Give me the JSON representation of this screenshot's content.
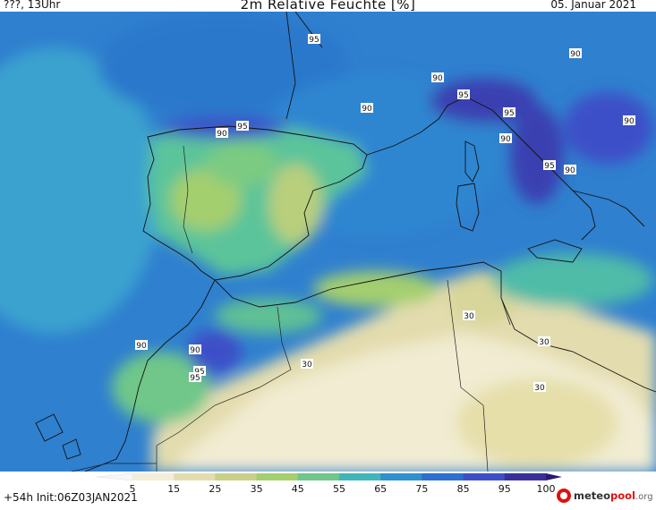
{
  "header": {
    "left": "???, 13Uhr",
    "title": "2m Relative Feuchte [%]",
    "date": "05. Januar 2021"
  },
  "footer": {
    "run": "+54h  Init:06Z03JAN2021",
    "logo_main": "meteo",
    "logo_accent": "pool",
    "logo_suffix": ".org"
  },
  "legend": {
    "ticks": [
      "5",
      "15",
      "25",
      "35",
      "45",
      "55",
      "65",
      "75",
      "85",
      "95",
      "100"
    ],
    "colors": [
      "#f7f7f7",
      "#f3eeda",
      "#e3dcae",
      "#c9cf86",
      "#a4cf6e",
      "#6fc789",
      "#3fb6b9",
      "#2f8fcf",
      "#2f6fcf",
      "#3d4fc8",
      "#3a2f9a",
      "#2a1870"
    ]
  },
  "contour_labels": [
    {
      "text": "95"
    },
    {
      "text": "90"
    },
    {
      "text": "90"
    },
    {
      "text": "95"
    },
    {
      "text": "90"
    },
    {
      "text": "90"
    },
    {
      "text": "95"
    },
    {
      "text": "95"
    },
    {
      "text": "90"
    },
    {
      "text": "90"
    },
    {
      "text": "95"
    },
    {
      "text": "90"
    },
    {
      "text": "90"
    },
    {
      "text": "90"
    },
    {
      "text": "95"
    },
    {
      "text": "95"
    },
    {
      "text": "30"
    },
    {
      "text": "30"
    },
    {
      "text": "30"
    },
    {
      "text": "30"
    }
  ]
}
